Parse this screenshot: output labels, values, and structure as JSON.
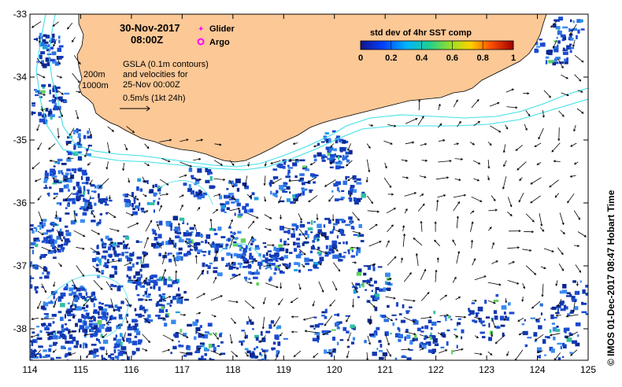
{
  "header": {
    "date": "30-Nov-2017",
    "time": "08:00Z"
  },
  "legend": {
    "glider_label": "Glider",
    "argo_label": "Argo",
    "glider_color": "#ff00ff",
    "argo_color": "#ff00ff"
  },
  "colorbar": {
    "title": "std dev of 4hr SST comp",
    "ticks": [
      "0",
      "0.2",
      "0.4",
      "0.6",
      "0.8",
      "1"
    ],
    "colors": [
      "#1a1a8c",
      "#0050ff",
      "#00c8ff",
      "#30d050",
      "#ffd000",
      "#ff5000",
      "#b00000"
    ]
  },
  "notes": {
    "line1": "GSLA (0.1m contours)",
    "line2": "and velocities for",
    "line3": "25-Nov 00:00Z",
    "line4": "0.5m/s (1kt 24h)"
  },
  "depth_labels": {
    "d200": "200m",
    "d1000": "1000m"
  },
  "credit": "© IMOS 01-Dec-2017 08:47 Hobart Time",
  "axes": {
    "x_ticks": [
      "114",
      "115",
      "116",
      "117",
      "118",
      "119",
      "120",
      "121",
      "122",
      "123",
      "124",
      "125"
    ],
    "y_ticks": [
      "-33",
      "-34",
      "-35",
      "-36",
      "-37",
      "-38"
    ],
    "lon_range": [
      114,
      125
    ],
    "lat_range": [
      -38.5,
      -33
    ]
  },
  "colors": {
    "land": "#fcc896",
    "isobath": "#40e0e8",
    "sst_low": "#1238b0",
    "sst_mid": "#2a6fe0"
  }
}
